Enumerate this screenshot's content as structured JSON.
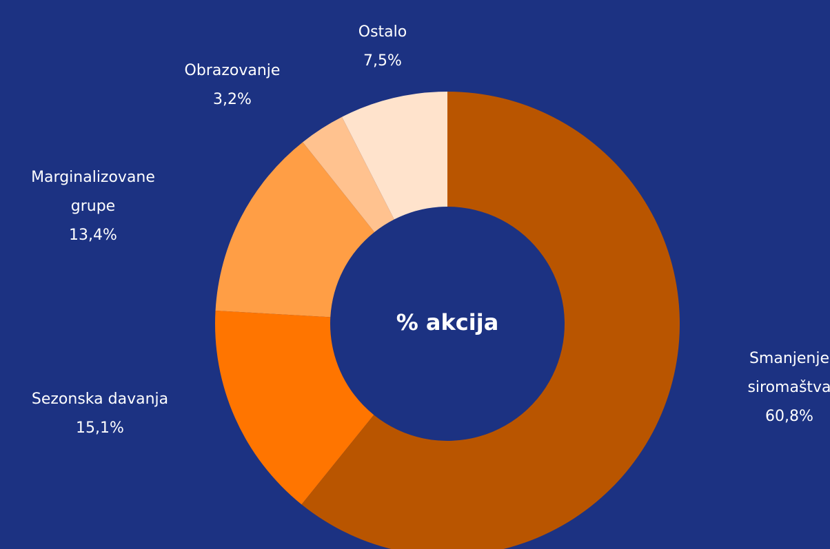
{
  "chart_data": {
    "type": "donut",
    "center_label": "% akcija",
    "categories": [
      "Smanjenje siromaštva",
      "Sezonska davanja",
      "Marginalizovane grupe",
      "Obrazovanje",
      "Ostalo"
    ],
    "values": [
      60.8,
      15.1,
      13.4,
      3.2,
      7.5
    ],
    "value_labels": [
      "60,8%",
      "15,1%",
      "13,4%",
      "3,2%",
      "7,5%"
    ],
    "colors": [
      "#b95500",
      "#ff7500",
      "#ff9e45",
      "#ffc28f",
      "#ffe3cc"
    ]
  }
}
